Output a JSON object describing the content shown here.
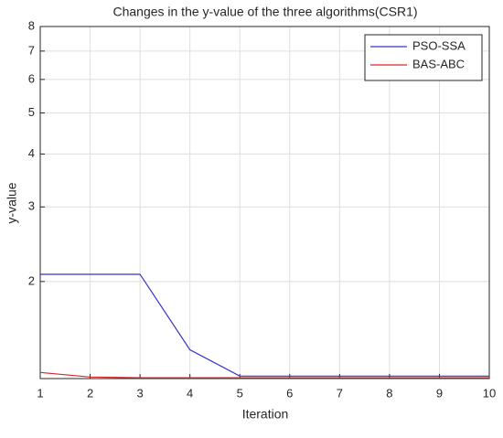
{
  "chart_data": {
    "type": "line",
    "title": "Changes in the y-value of the three algorithms(CSR1)",
    "x_label": "Iteration",
    "y_label": "y-value",
    "x": [
      1,
      2,
      3,
      4,
      5,
      6,
      7,
      8,
      9,
      10
    ],
    "series": [
      {
        "name": "PSO-SSA",
        "color": "#3333cc",
        "values": [
          2.08,
          2.08,
          2.08,
          1.38,
          1.196,
          1.196,
          1.196,
          1.196,
          1.196,
          1.196
        ]
      },
      {
        "name": "BAS-ABC",
        "color": "#d62728",
        "values": [
          1.22,
          1.19,
          1.185,
          1.185,
          1.185,
          1.185,
          1.185,
          1.185,
          1.185,
          1.185
        ]
      }
    ],
    "xlim": [
      1,
      10
    ],
    "xticks": [
      1,
      2,
      3,
      4,
      5,
      6,
      7,
      8,
      9,
      10
    ],
    "ylim": [
      1.18,
      8
    ],
    "yticks": [
      2,
      3,
      4,
      5,
      6,
      7,
      8
    ],
    "y_log": true,
    "grid": true,
    "legend": "upper right"
  }
}
